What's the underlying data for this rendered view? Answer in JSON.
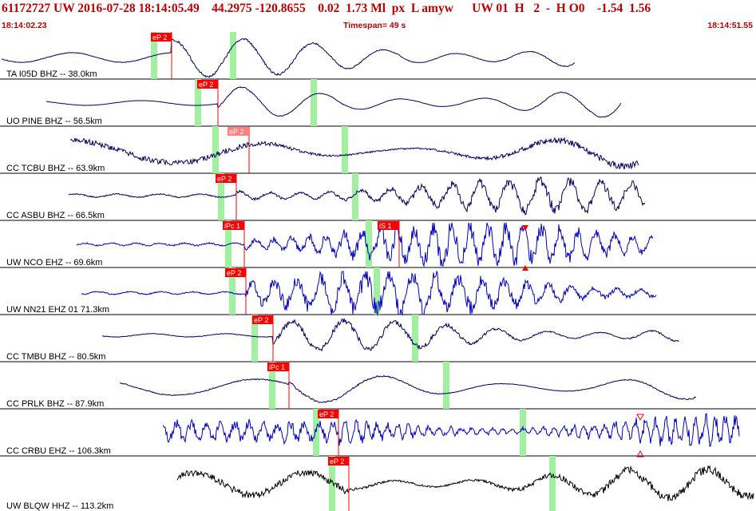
{
  "header": {
    "title": "61172727 UW 2016-07-28 18:14:05.49    44.2975 -120.8655    0.02  1.73 Ml  px  L amyw      UW 01  H   2  -  H O0    -1.54  1.56",
    "start_time": "18:14:02.23",
    "timespan": "Timespan=  49 s",
    "end_time": "18:14:51.55"
  },
  "colors": {
    "header_text": "#c00000",
    "pick_line": "#ff0000",
    "pick_label_bg": "#ff0000",
    "pick_label_weak_bg": "#ff8080",
    "window_marker": "#a0f0a0",
    "trace_short_period": "#0000c0",
    "trace_broadband": "#000060",
    "trace_hhz": "#000000"
  },
  "traces": [
    {
      "label": "TA I05D BHZ -- 38.0km",
      "picks": [
        {
          "label": "eP 2"
        }
      ]
    },
    {
      "label": "UO PINE BHZ -- 56.5km",
      "picks": [
        {
          "label": "eP 2"
        }
      ]
    },
    {
      "label": "CC TCBU BHZ -- 63.9km",
      "picks": [
        {
          "label": "eP 2"
        }
      ]
    },
    {
      "label": "CC ASBU BHZ -- 66.5km",
      "picks": [
        {
          "label": "eP 2"
        }
      ]
    },
    {
      "label": "UW NCO EHZ -- 69.6km",
      "picks": [
        {
          "label": "iPc 1"
        },
        {
          "label": "iS 1"
        }
      ]
    },
    {
      "label": "UW NN21 EHZ 01 71.3km",
      "picks": [
        {
          "label": "eP 2"
        }
      ]
    },
    {
      "label": "CC TMBU BHZ -- 80.5km",
      "picks": [
        {
          "label": "eP 2"
        }
      ]
    },
    {
      "label": "CC PRLK BHZ -- 87.9km",
      "picks": [
        {
          "label": "iPc 1"
        }
      ]
    },
    {
      "label": "CC CRBU EHZ -- 106.3km",
      "picks": [
        {
          "label": "eP 2"
        }
      ]
    },
    {
      "label": "UW BLQW HHZ -- 113.2km",
      "picks": [
        {
          "label": "eP 2"
        }
      ]
    }
  ]
}
